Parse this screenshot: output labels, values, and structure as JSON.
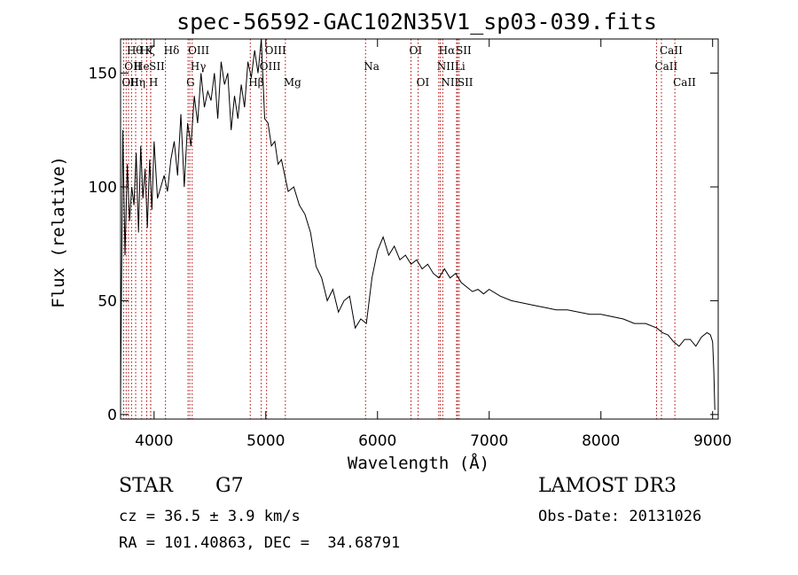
{
  "chart_data": {
    "type": "line",
    "title": "spec-56592-GAC102N35V1_sp03-039.fits",
    "xlabel": "Wavelength (Å)",
    "ylabel": "Flux (relative)",
    "xlim": [
      3700,
      9050
    ],
    "ylim": [
      -2,
      165
    ],
    "x_ticks": [
      4000,
      5000,
      6000,
      7000,
      8000,
      9000
    ],
    "x_tick_labels": [
      "4000",
      "5000",
      "6000",
      "7000",
      "8000",
      "9000"
    ],
    "y_ticks": [
      0,
      50,
      100,
      150
    ],
    "y_tick_labels": [
      "0",
      "50",
      "100",
      "150"
    ],
    "grid": false,
    "line_color": "#000000",
    "line_marker_color": "#b00000",
    "series": [
      {
        "name": "flux",
        "x": [
          3700,
          3720,
          3740,
          3760,
          3780,
          3800,
          3820,
          3840,
          3860,
          3880,
          3900,
          3920,
          3940,
          3960,
          3980,
          4000,
          4030,
          4060,
          4090,
          4120,
          4150,
          4180,
          4210,
          4240,
          4270,
          4300,
          4330,
          4360,
          4390,
          4420,
          4450,
          4480,
          4510,
          4540,
          4570,
          4600,
          4630,
          4660,
          4690,
          4720,
          4750,
          4780,
          4810,
          4840,
          4870,
          4900,
          4930,
          4960,
          4990,
          5020,
          5050,
          5080,
          5110,
          5140,
          5170,
          5200,
          5250,
          5300,
          5350,
          5400,
          5450,
          5500,
          5550,
          5600,
          5650,
          5700,
          5750,
          5800,
          5850,
          5900,
          5950,
          6000,
          6050,
          6100,
          6150,
          6200,
          6250,
          6300,
          6350,
          6400,
          6450,
          6500,
          6550,
          6600,
          6650,
          6700,
          6750,
          6800,
          6850,
          6900,
          6950,
          7000,
          7100,
          7200,
          7300,
          7400,
          7500,
          7600,
          7700,
          7800,
          7900,
          8000,
          8100,
          8200,
          8300,
          8400,
          8500,
          8550,
          8600,
          8650,
          8700,
          8750,
          8800,
          8850,
          8900,
          8950,
          8980,
          9000,
          9010,
          9020
        ],
        "y": [
          8,
          125,
          70,
          110,
          85,
          100,
          92,
          115,
          80,
          118,
          95,
          108,
          82,
          112,
          90,
          120,
          95,
          100,
          105,
          98,
          112,
          120,
          105,
          132,
          100,
          128,
          118,
          140,
          128,
          150,
          135,
          142,
          138,
          150,
          130,
          155,
          145,
          150,
          125,
          140,
          130,
          145,
          135,
          155,
          148,
          160,
          150,
          165,
          130,
          128,
          118,
          120,
          110,
          112,
          105,
          98,
          100,
          92,
          88,
          80,
          65,
          60,
          50,
          55,
          45,
          50,
          52,
          38,
          42,
          40,
          60,
          72,
          78,
          70,
          74,
          68,
          70,
          66,
          68,
          64,
          66,
          62,
          60,
          64,
          60,
          62,
          58,
          56,
          54,
          55,
          53,
          55,
          52,
          50,
          49,
          48,
          47,
          46,
          46,
          45,
          44,
          44,
          43,
          42,
          40,
          40,
          38,
          36,
          35,
          32,
          30,
          33,
          33,
          30,
          34,
          36,
          35,
          32,
          20,
          2
        ]
      }
    ],
    "line_markers": [
      {
        "wavelength": 3727,
        "label": "OII",
        "row": 2
      },
      {
        "wavelength": 3750,
        "label": "OII",
        "row": 1
      },
      {
        "wavelength": 3771,
        "label": "Hθ",
        "row": 0
      },
      {
        "wavelength": 3798,
        "label": "Hη",
        "row": 2
      },
      {
        "wavelength": 3835,
        "label": "He",
        "row": 1
      },
      {
        "wavelength": 3889,
        "label": "Hζ",
        "row": 0
      },
      {
        "wavelength": 3934,
        "label": "K",
        "row": 0
      },
      {
        "wavelength": 3969,
        "label": "H",
        "row": 2
      },
      {
        "wavelength": 3970,
        "label": "SII",
        "row": 1
      },
      {
        "wavelength": 4102,
        "label": "Hδ",
        "row": 0
      },
      {
        "wavelength": 4304,
        "label": "G",
        "row": 2
      },
      {
        "wavelength": 4320,
        "label": "OIII",
        "row": 0
      },
      {
        "wavelength": 4341,
        "label": "Hγ",
        "row": 1
      },
      {
        "wavelength": 4861,
        "label": "Hβ",
        "row": 2
      },
      {
        "wavelength": 4959,
        "label": "OIII",
        "row": 1
      },
      {
        "wavelength": 5007,
        "label": "OIII",
        "row": 0
      },
      {
        "wavelength": 5175,
        "label": "Mg",
        "row": 2
      },
      {
        "wavelength": 5893,
        "label": "Na",
        "row": 1
      },
      {
        "wavelength": 6300,
        "label": "OI",
        "row": 0
      },
      {
        "wavelength": 6364,
        "label": "OI",
        "row": 2
      },
      {
        "wavelength": 6548,
        "label": "NII",
        "row": 1
      },
      {
        "wavelength": 6563,
        "label": "Hα",
        "row": 0
      },
      {
        "wavelength": 6584,
        "label": "NII",
        "row": 2
      },
      {
        "wavelength": 6708,
        "label": "Li",
        "row": 1
      },
      {
        "wavelength": 6717,
        "label": "SII",
        "row": 0
      },
      {
        "wavelength": 6731,
        "label": "SII",
        "row": 2
      },
      {
        "wavelength": 8498,
        "label": "CaII",
        "row": 1
      },
      {
        "wavelength": 8542,
        "label": "CaII",
        "row": 0
      },
      {
        "wavelength": 8662,
        "label": "CaII",
        "row": 2
      }
    ]
  },
  "footer": {
    "object_class": "STAR",
    "subclass": "G7",
    "survey": "LAMOST DR3",
    "redshift": "cz = 36.5 ± 3.9 km/s",
    "obs_date": "Obs-Date: 20131026",
    "coords": "RA = 101.40863, DEC =  34.68791"
  }
}
